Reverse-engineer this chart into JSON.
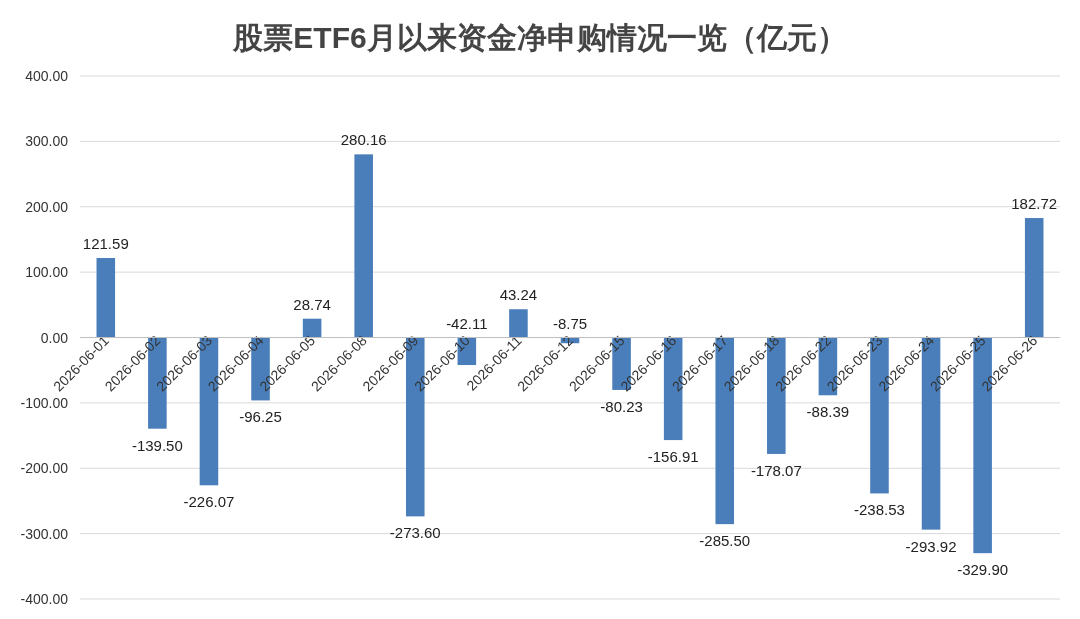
{
  "chart_data": {
    "type": "bar",
    "title": "股票ETF6月以来资金净申购情况一览（亿元）",
    "categories": [
      "2026-06-01",
      "2026-06-02",
      "2026-06-03",
      "2026-06-04",
      "2026-06-05",
      "2026-06-08",
      "2026-06-09",
      "2026-06-10",
      "2026-06-11",
      "2026-06-12",
      "2026-06-15",
      "2026-06-16",
      "2026-06-17",
      "2026-06-18",
      "2026-06-22",
      "2026-06-23",
      "2026-06-24",
      "2026-06-25",
      "2026-06-26"
    ],
    "values": [
      121.59,
      -139.5,
      -226.07,
      -96.25,
      28.74,
      280.16,
      -273.6,
      -42.11,
      43.24,
      -8.75,
      -80.23,
      -156.91,
      -285.5,
      -178.07,
      -88.39,
      -238.53,
      -293.92,
      -329.9,
      182.72
    ],
    "value_labels": [
      "121.59",
      "-139.50",
      "-226.07",
      "-96.25",
      "28.74",
      "280.16",
      "-273.60",
      "-42.11",
      "43.24",
      "-8.75",
      "-80.23",
      "-156.91",
      "-285.50",
      "-178.07",
      "-88.39",
      "-238.53",
      "-293.92",
      "-329.90",
      "182.72"
    ],
    "color": "#4a7ebb",
    "ylim": [
      -400,
      400
    ],
    "yticks": [
      {
        "value": -400,
        "label": "-400.00"
      },
      {
        "value": -300,
        "label": "-300.00"
      },
      {
        "value": -200,
        "label": "-200.00"
      },
      {
        "value": -100,
        "label": "-100.00"
      },
      {
        "value": 0,
        "label": "0.00"
      },
      {
        "value": 100,
        "label": "100.00"
      },
      {
        "value": 200,
        "label": "200.00"
      },
      {
        "value": 300,
        "label": "300.00"
      },
      {
        "value": 400,
        "label": "400.00"
      }
    ],
    "grid": "y"
  }
}
